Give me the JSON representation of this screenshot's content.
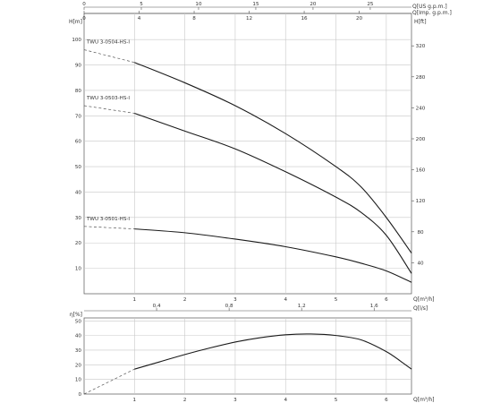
{
  "colors": {
    "grid": "#c8c8c8",
    "frame": "#555555",
    "curve": "#1a1a1a",
    "dash": "#555555",
    "text": "#333333"
  },
  "chart_data": [
    {
      "type": "line",
      "title": "",
      "xlabel": "Q[m³/h]",
      "ylabel": "H[m]",
      "ylabel_right": "H[ft]",
      "xlim": [
        0,
        6.5
      ],
      "ylim": [
        0,
        105
      ],
      "x_ticks": [
        1,
        2,
        3,
        4,
        5,
        6
      ],
      "y_ticks": [
        10,
        20,
        30,
        40,
        50,
        60,
        70,
        80,
        90,
        100
      ],
      "y2_ticks": [
        40,
        80,
        120,
        160,
        200,
        240,
        280,
        320
      ],
      "top_axes": [
        {
          "label": "Q[US g.p.m.]",
          "max": 28.6,
          "ticks": [
            0,
            5,
            10,
            15,
            20,
            25
          ]
        },
        {
          "label": "Q[Imp. g.p.m.]",
          "max": 23.8,
          "ticks": [
            0,
            4,
            8,
            12,
            16,
            20
          ]
        }
      ],
      "grid": true,
      "series": [
        {
          "name": "TWU 3-0504-HS-I",
          "dashed": [
            [
              0,
              96
            ],
            [
              1,
              91
            ]
          ],
          "x": [
            1,
            2,
            3,
            4,
            5,
            5.5,
            6,
            6.5
          ],
          "y": [
            91,
            83,
            74,
            63,
            50,
            42,
            30,
            16
          ]
        },
        {
          "name": "TWU 3-0503-HS-I",
          "dashed": [
            [
              0,
              74
            ],
            [
              1,
              71
            ]
          ],
          "x": [
            1,
            2,
            3,
            4,
            5,
            5.5,
            6,
            6.5
          ],
          "y": [
            71,
            64,
            57,
            48,
            38,
            32,
            23,
            8
          ]
        },
        {
          "name": "TWU 3-0501-HS-I",
          "dashed": [
            [
              0,
              26.5
            ],
            [
              1,
              25.5
            ]
          ],
          "x": [
            1,
            2,
            3,
            4,
            5,
            5.5,
            6,
            6.5
          ],
          "y": [
            25.5,
            24,
            21.5,
            18.5,
            14.5,
            12,
            9,
            4.5
          ]
        }
      ]
    },
    {
      "type": "line",
      "title": "",
      "xlabel": "Q[m³/h]",
      "ylabel": "η[%]",
      "xlim": [
        0,
        6.5
      ],
      "ylim": [
        0,
        52
      ],
      "x_ticks": [
        1,
        2,
        3,
        4,
        5,
        6
      ],
      "y_ticks": [
        0,
        10,
        20,
        30,
        40,
        50
      ],
      "top_axis": {
        "label": "Q[l/s]",
        "max": 1.806,
        "ticks": [
          "0,4",
          "0,8",
          "1,2",
          "1,6"
        ],
        "tick_values": [
          0.4,
          0.8,
          1.2,
          1.6
        ]
      },
      "grid": true,
      "series": [
        {
          "name": "",
          "dashed": [
            [
              0,
              0
            ],
            [
              1,
              17
            ]
          ],
          "x": [
            1,
            1.5,
            2,
            2.5,
            3,
            3.5,
            4,
            4.5,
            5,
            5.5,
            6,
            6.3,
            6.5
          ],
          "y": [
            17,
            22,
            27,
            31.5,
            35.5,
            38.5,
            40.5,
            41,
            40,
            37,
            29,
            22,
            17
          ]
        }
      ]
    }
  ]
}
